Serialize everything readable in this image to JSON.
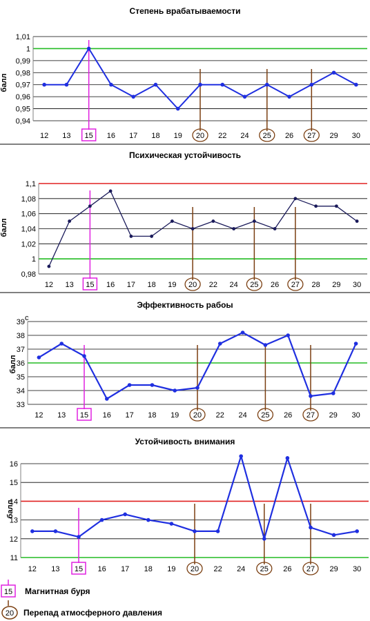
{
  "colors": {
    "series_blue": "#1f2fe0",
    "series_navy": "#1a1a5a",
    "green_line": "#22bb22",
    "red_line": "#e02020",
    "magnetic_storm": "#e020e0",
    "pressure_drop": "#7a3e10",
    "grid": "#000000"
  },
  "legend": {
    "storm_day": "15",
    "storm_label": "Магнитная буря",
    "pressure_day": "20",
    "pressure_label": "Перепад атмосферного давления"
  },
  "chart_data": [
    {
      "type": "line",
      "title": "Степень врабатываемости",
      "ylabel": "балл",
      "unit": "",
      "categories": [
        "12",
        "13",
        "15",
        "16",
        "17",
        "18",
        "19",
        "20",
        "22",
        "24",
        "25",
        "26",
        "27",
        "29",
        "30"
      ],
      "values": [
        0.97,
        0.97,
        1.0,
        0.97,
        0.96,
        0.97,
        0.95,
        0.97,
        0.97,
        0.96,
        0.97,
        0.96,
        0.97,
        0.98,
        0.97
      ],
      "yticks": [
        "0,94",
        "0,95",
        "0,96",
        "0,97",
        "0,98",
        "0,99",
        "1",
        "1,01"
      ],
      "ylim": [
        0.94,
        1.01
      ],
      "reference_lines": [
        {
          "value": 1.0,
          "color": "green"
        }
      ],
      "grid": true,
      "series_color": "blue",
      "magnetic_storm_days": [
        "15"
      ],
      "pressure_drop_days": [
        "20",
        "25",
        "27"
      ]
    },
    {
      "type": "line",
      "title": "Психическая устойчивость",
      "ylabel": "балл",
      "unit": "",
      "categories": [
        "12",
        "13",
        "15",
        "16",
        "17",
        "18",
        "19",
        "20",
        "22",
        "24",
        "25",
        "26",
        "27",
        "28",
        "29",
        "30"
      ],
      "values": [
        0.99,
        1.05,
        1.07,
        1.09,
        1.03,
        1.03,
        1.05,
        1.04,
        1.05,
        1.04,
        1.05,
        1.04,
        1.08,
        1.07,
        1.07,
        1.05
      ],
      "yticks": [
        "0,98",
        "1",
        "1,02",
        "1,04",
        "1,06",
        "1,08",
        "1,1"
      ],
      "ylim": [
        0.98,
        1.1
      ],
      "reference_lines": [
        {
          "value": 1.0,
          "color": "green"
        },
        {
          "value": 1.1,
          "color": "red"
        }
      ],
      "grid": true,
      "series_color": "navy",
      "magnetic_storm_days": [
        "15"
      ],
      "pressure_drop_days": [
        "20",
        "25",
        "27"
      ]
    },
    {
      "type": "line",
      "title": "Эффективность рабоы",
      "ylabel": "балл",
      "unit": "с",
      "categories": [
        "12",
        "13",
        "15",
        "16",
        "17",
        "18",
        "19",
        "20",
        "22",
        "24",
        "25",
        "26",
        "27",
        "29",
        "30"
      ],
      "values": [
        36.4,
        37.4,
        36.5,
        33.4,
        34.4,
        34.4,
        34.0,
        34.2,
        37.4,
        38.2,
        37.3,
        38.0,
        33.6,
        33.8,
        37.4
      ],
      "yticks": [
        "33",
        "34",
        "35",
        "36",
        "37",
        "38",
        "39"
      ],
      "ylim": [
        33,
        39
      ],
      "reference_lines": [
        {
          "value": 36,
          "color": "green"
        }
      ],
      "grid": true,
      "series_color": "blue",
      "magnetic_storm_days": [
        "15"
      ],
      "pressure_drop_days": [
        "20",
        "25",
        "27"
      ]
    },
    {
      "type": "line",
      "title": "Устойчивость внимания",
      "ylabel": "балл",
      "unit": "",
      "categories": [
        "12",
        "13",
        "15",
        "16",
        "17",
        "18",
        "19",
        "20",
        "22",
        "24",
        "25",
        "26",
        "27",
        "29",
        "30"
      ],
      "values": [
        12.4,
        12.4,
        12.1,
        13.0,
        13.3,
        13.0,
        12.8,
        12.4,
        12.4,
        16.4,
        12.0,
        16.3,
        12.6,
        12.2,
        12.4
      ],
      "yticks": [
        "11",
        "12",
        "13",
        "14",
        "15",
        "16"
      ],
      "ylim": [
        11,
        16
      ],
      "reference_lines": [
        {
          "value": 14,
          "color": "red"
        },
        {
          "value": 11,
          "color": "green"
        }
      ],
      "grid": true,
      "series_color": "blue",
      "magnetic_storm_days": [
        "15"
      ],
      "pressure_drop_days": [
        "20",
        "25",
        "27"
      ]
    }
  ]
}
